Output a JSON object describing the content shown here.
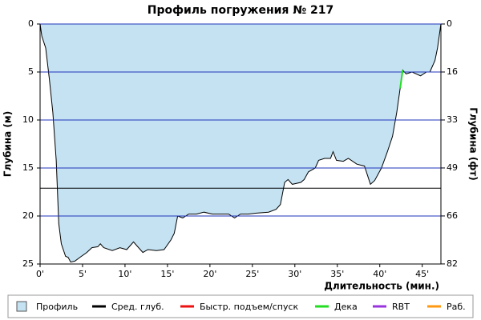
{
  "chart_data": {
    "type": "area",
    "title": "Профиль погружения № 217",
    "ylabel": "Глубина (м)",
    "y2label": "Глубина (фт)",
    "xlabel": "Длительность (мин.)",
    "xlim": [
      0,
      47.2
    ],
    "ylim": [
      0,
      25
    ],
    "y2lim": [
      0,
      82.02
    ],
    "y_inverted": true,
    "grid": true,
    "xticks": [
      {
        "value": 0,
        "label": "0'"
      },
      {
        "value": 5,
        "label": "5'"
      },
      {
        "value": 10,
        "label": "10'"
      },
      {
        "value": 15,
        "label": "15'"
      },
      {
        "value": 20,
        "label": "20'"
      },
      {
        "value": 25,
        "label": "25'"
      },
      {
        "value": 30,
        "label": "30'"
      },
      {
        "value": 35,
        "label": "35'"
      },
      {
        "value": 40,
        "label": "40'"
      },
      {
        "value": 45,
        "label": "45'"
      }
    ],
    "yticks": [
      0,
      5,
      10,
      15,
      20,
      25
    ],
    "y2ticks": [
      0,
      {
        "value": 16.4,
        "label": "16"
      },
      {
        "value": 32.8,
        "label": "33"
      },
      {
        "value": 49.2,
        "label": "49"
      },
      {
        "value": 65.6,
        "label": "66"
      },
      {
        "value": 82.0,
        "label": "82"
      }
    ],
    "series": [
      {
        "name": "Профиль",
        "type": "area",
        "color": "#c4e2f2",
        "x": [
          0,
          0.2,
          0.66,
          1.1,
          1.5,
          1.9,
          2.2,
          2.5,
          3.0,
          3.3,
          3.6,
          4.1,
          4.7,
          5.5,
          6.1,
          6.8,
          7.1,
          7.5,
          8.5,
          9.4,
          10.2,
          11.0,
          12.1,
          12.7,
          13.7,
          14.6,
          15.4,
          15.8,
          16.2,
          16.8,
          17.5,
          18.4,
          19.3,
          20.3,
          21.2,
          22.2,
          22.9,
          23.6,
          24.5,
          25.5,
          26.9,
          27.8,
          28.3,
          28.8,
          29.2,
          29.7,
          30.7,
          31.1,
          31.6,
          32.4,
          32.8,
          33.5,
          34.2,
          34.5,
          34.9,
          35.7,
          36.3,
          37.3,
          38.2,
          38.9,
          39.4,
          40.2,
          40.9,
          41.5,
          42.0,
          42.4,
          42.7,
          43.1,
          43.8,
          44.8,
          45.5,
          45.9,
          46.5,
          46.8,
          47.0,
          47.2
        ],
        "values": [
          0,
          1.25,
          2.5,
          5.8,
          9.2,
          14.2,
          20.8,
          22.9,
          24.2,
          24.3,
          24.8,
          24.7,
          24.3,
          23.8,
          23.3,
          23.2,
          22.9,
          23.3,
          23.6,
          23.3,
          23.5,
          22.7,
          23.8,
          23.5,
          23.6,
          23.5,
          22.5,
          21.8,
          20.0,
          20.2,
          19.8,
          19.8,
          19.6,
          19.8,
          19.8,
          19.8,
          20.2,
          19.8,
          19.8,
          19.7,
          19.6,
          19.3,
          18.8,
          16.5,
          16.2,
          16.7,
          16.5,
          16.2,
          15.4,
          15.0,
          14.2,
          14.0,
          14.0,
          13.3,
          14.2,
          14.3,
          14.0,
          14.6,
          14.8,
          16.7,
          16.3,
          15.0,
          13.3,
          11.7,
          9.2,
          6.7,
          4.8,
          5.2,
          5.0,
          5.4,
          5.0,
          5.0,
          3.8,
          2.5,
          1.25,
          0
        ]
      },
      {
        "name": "Сред. глуб.",
        "type": "hline",
        "color": "#000000",
        "value": 17.1
      },
      {
        "name": "Быстр. подъем/спуск",
        "type": "line",
        "color": "#ee1111",
        "x": [],
        "values": []
      },
      {
        "name": "Дека",
        "type": "line",
        "color": "#22dd22",
        "x": [
          42.4,
          42.7
        ],
        "values": [
          6.7,
          4.8
        ]
      },
      {
        "name": "RBT",
        "type": "line",
        "color": "#9933dd",
        "x": [],
        "values": []
      },
      {
        "name": "Раб.",
        "type": "line",
        "color": "#ff9911",
        "x": [],
        "values": []
      }
    ]
  }
}
